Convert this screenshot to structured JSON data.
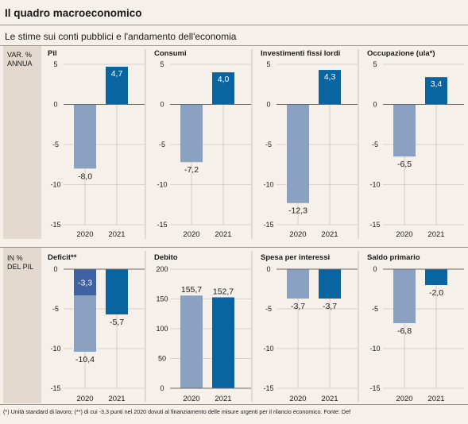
{
  "header": {
    "title": "Il quadro macroeconomico",
    "subtitle": "Le stime sui conti pubblici e l'andamento dell'economia"
  },
  "sections": [
    {
      "label_line1": "VAR. %",
      "label_line2": "ANNUA"
    },
    {
      "label_line1": "IN %",
      "label_line2": "DEL PIL"
    }
  ],
  "footnote": "(*) Unità standard di lavoro; (**) di cui  -3,3 punti nel 2020 dovuti al finanziamento delle misure urgenti per il rilancio economico. Fonte: Def",
  "colors": {
    "bar_2020": "#8aa1c1",
    "bar_2021": "#0a64a0",
    "bar_deficit_urgent": "#3f62a2",
    "sidebar": "#e3d9cf",
    "background": "#f6f0ea"
  },
  "chart_data": [
    {
      "type": "bar",
      "title": "Pil",
      "categories": [
        "2020",
        "2021"
      ],
      "values": [
        -8.0,
        4.7
      ],
      "value_labels": [
        "-8,0",
        "4,7"
      ],
      "ylim": [
        -15,
        5
      ],
      "yticks": [
        5,
        0,
        -5,
        -10,
        -15
      ],
      "ytick_labels": [
        "5",
        "0",
        "-5",
        "-10",
        "-15"
      ]
    },
    {
      "type": "bar",
      "title": "Consumi",
      "categories": [
        "2020",
        "2021"
      ],
      "values": [
        -7.2,
        4.0
      ],
      "value_labels": [
        "-7,2",
        "4,0"
      ],
      "ylim": [
        -15,
        5
      ],
      "yticks": [
        5,
        0,
        -5,
        -10,
        -15
      ],
      "ytick_labels": [
        "5",
        "0",
        "-5",
        "-10",
        "-15"
      ]
    },
    {
      "type": "bar",
      "title": "Investimenti fissi lordi",
      "categories": [
        "2020",
        "2021"
      ],
      "values": [
        -12.3,
        4.3
      ],
      "value_labels": [
        "-12,3",
        "4,3"
      ],
      "ylim": [
        -15,
        5
      ],
      "yticks": [
        5,
        0,
        -5,
        -10,
        -15
      ],
      "ytick_labels": [
        "5",
        "0",
        "-5",
        "-10",
        "-15"
      ]
    },
    {
      "type": "bar",
      "title": "Occupazione (ula*)",
      "categories": [
        "2020",
        "2021"
      ],
      "values": [
        -6.5,
        3.4
      ],
      "value_labels": [
        "-6,5",
        "3,4"
      ],
      "ylim": [
        -15,
        5
      ],
      "yticks": [
        5,
        0,
        -5,
        -10,
        -15
      ],
      "ytick_labels": [
        "5",
        "0",
        "-5",
        "-10",
        "-15"
      ]
    },
    {
      "type": "bar",
      "title": "Deficit**",
      "categories": [
        "2020",
        "2021"
      ],
      "values": [
        -10.4,
        -5.7
      ],
      "value_labels": [
        "-10,4",
        "-5,7"
      ],
      "inner_value": -3.3,
      "inner_value_label": "-3,3",
      "ylim": [
        -15,
        0
      ],
      "yticks": [
        0,
        -5,
        -10,
        -15
      ],
      "ytick_labels": [
        "0",
        "-5",
        "-10",
        "-15"
      ]
    },
    {
      "type": "bar",
      "title": "Debito",
      "categories": [
        "2020",
        "2021"
      ],
      "values": [
        155.7,
        152.7
      ],
      "value_labels": [
        "155,7",
        "152,7"
      ],
      "ylim": [
        0,
        200
      ],
      "yticks": [
        200,
        150,
        100,
        50,
        0
      ],
      "ytick_labels": [
        "200",
        "150",
        "100",
        "50",
        "0"
      ]
    },
    {
      "type": "bar",
      "title": "Spesa per interessi",
      "categories": [
        "2020",
        "2021"
      ],
      "values": [
        -3.7,
        -3.7
      ],
      "value_labels": [
        "-3,7",
        "-3,7"
      ],
      "ylim": [
        -15,
        0
      ],
      "yticks": [
        0,
        -5,
        -10,
        -15
      ],
      "ytick_labels": [
        "0",
        "-5",
        "-10",
        "-15"
      ]
    },
    {
      "type": "bar",
      "title": "Saldo primario",
      "categories": [
        "2020",
        "2021"
      ],
      "values": [
        -6.8,
        -2.0
      ],
      "value_labels": [
        "-6,8",
        "-2,0"
      ],
      "ylim": [
        -15,
        0
      ],
      "yticks": [
        0,
        -5,
        -10,
        -15
      ],
      "ytick_labels": [
        "0",
        "-5",
        "-10",
        "-15"
      ]
    }
  ]
}
